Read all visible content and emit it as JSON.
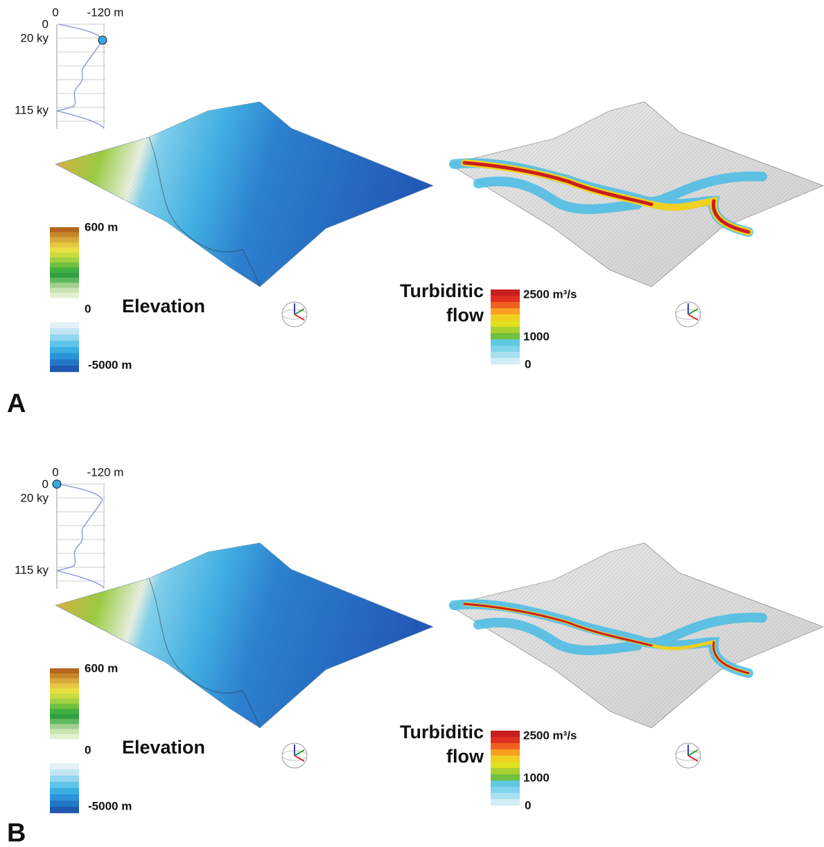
{
  "panels": [
    {
      "label": "A",
      "sea_level": {
        "x_labels": [
          "0",
          "-120 m"
        ],
        "y_labels": [
          "0",
          "20 ky",
          "115 ky"
        ]
      },
      "elevation_legend": {
        "title": "Elevation",
        "labels": [
          "600 m",
          "0",
          "-5000 m"
        ]
      },
      "flow_legend": {
        "title": [
          "Turbiditic",
          "flow"
        ],
        "labels": [
          "2500 m³/s",
          "1000",
          "0"
        ]
      }
    },
    {
      "label": "B",
      "sea_level": {
        "x_labels": [
          "0",
          "-120 m"
        ],
        "y_labels": [
          "0",
          "20 ky",
          "115 ky"
        ]
      },
      "elevation_legend": {
        "title": "Elevation",
        "labels": [
          "600 m",
          "0",
          "-5000 m"
        ]
      },
      "flow_legend": {
        "title": [
          "Turbiditic",
          "flow"
        ],
        "labels": [
          "2500 m³/s",
          "1000",
          "0"
        ]
      }
    }
  ]
}
